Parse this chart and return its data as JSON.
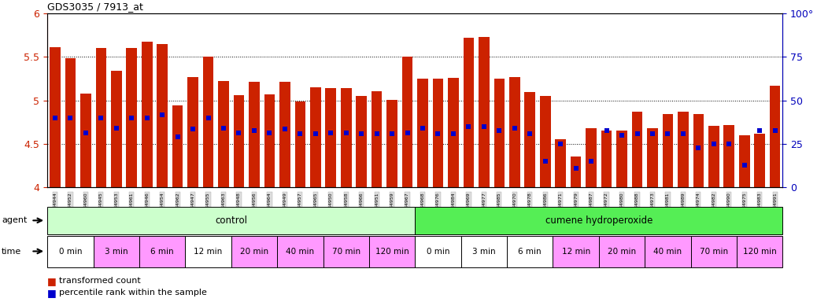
{
  "title": "GDS3035 / 7913_at",
  "samples": [
    "GSM184944",
    "GSM184952",
    "GSM184960",
    "GSM184945",
    "GSM184953",
    "GSM184961",
    "GSM184946",
    "GSM184954",
    "GSM184962",
    "GSM184947",
    "GSM184955",
    "GSM184963",
    "GSM184948",
    "GSM184956",
    "GSM184964",
    "GSM184949",
    "GSM184957",
    "GSM184965",
    "GSM184950",
    "GSM184958",
    "GSM184966",
    "GSM184951",
    "GSM184959",
    "GSM184967",
    "GSM184968",
    "GSM184976",
    "GSM184984",
    "GSM184969",
    "GSM184977",
    "GSM184985",
    "GSM184970",
    "GSM184978",
    "GSM184986",
    "GSM184971",
    "GSM184979",
    "GSM184987",
    "GSM184972",
    "GSM184980",
    "GSM184988",
    "GSM184973",
    "GSM184981",
    "GSM184989",
    "GSM184974",
    "GSM184982",
    "GSM184990",
    "GSM184975",
    "GSM184983",
    "GSM184991"
  ],
  "red_values": [
    5.61,
    5.49,
    5.08,
    5.6,
    5.34,
    5.6,
    5.68,
    5.65,
    4.94,
    5.27,
    5.5,
    5.22,
    5.06,
    5.21,
    5.07,
    5.21,
    4.99,
    5.15,
    5.14,
    5.14,
    5.05,
    5.11,
    5.01,
    5.5,
    5.25,
    5.25,
    5.26,
    5.72,
    5.73,
    5.25,
    5.27,
    5.1,
    5.05,
    4.55,
    4.35,
    4.68,
    4.65,
    4.65,
    4.87,
    4.68,
    4.84,
    4.87,
    4.84,
    4.71,
    4.72,
    4.6,
    4.62,
    5.17
  ],
  "blue_values": [
    4.8,
    4.8,
    4.63,
    4.8,
    4.68,
    4.8,
    4.8,
    4.83,
    4.58,
    4.67,
    4.8,
    4.68,
    4.63,
    4.65,
    4.63,
    4.67,
    4.62,
    4.62,
    4.63,
    4.63,
    4.62,
    4.62,
    4.62,
    4.63,
    4.68,
    4.62,
    4.62,
    4.7,
    4.7,
    4.65,
    4.68,
    4.62,
    4.3,
    4.5,
    4.22,
    4.3,
    4.65,
    4.6,
    4.62,
    4.62,
    4.62,
    4.62,
    4.45,
    4.5,
    4.5,
    4.25,
    4.65,
    4.65
  ],
  "ylim_left": [
    4.0,
    6.0
  ],
  "ylim_right": [
    0,
    100
  ],
  "yticks_left": [
    4.0,
    4.5,
    5.0,
    5.5,
    6.0
  ],
  "yticks_right": [
    0,
    25,
    50,
    75,
    100
  ],
  "bar_color": "#CC2200",
  "dot_color": "#0000CC",
  "bg_color": "#FFFFFF",
  "axis_left_color": "#CC2200",
  "axis_right_color": "#0000BB",
  "agent_row": [
    {
      "label": "control",
      "start": 0,
      "end": 24,
      "color": "#CCFFCC"
    },
    {
      "label": "cumene hydroperoxide",
      "start": 24,
      "end": 48,
      "color": "#55EE55"
    }
  ],
  "time_groups": [
    {
      "label": "0 min",
      "start": 0,
      "end": 3,
      "color": "#FFFFFF"
    },
    {
      "label": "3 min",
      "start": 3,
      "end": 6,
      "color": "#FF99FF"
    },
    {
      "label": "6 min",
      "start": 6,
      "end": 9,
      "color": "#FF99FF"
    },
    {
      "label": "12 min",
      "start": 9,
      "end": 12,
      "color": "#FFFFFF"
    },
    {
      "label": "20 min",
      "start": 12,
      "end": 15,
      "color": "#FF99FF"
    },
    {
      "label": "40 min",
      "start": 15,
      "end": 18,
      "color": "#FF99FF"
    },
    {
      "label": "70 min",
      "start": 18,
      "end": 21,
      "color": "#FF99FF"
    },
    {
      "label": "120 min",
      "start": 21,
      "end": 24,
      "color": "#FF99FF"
    },
    {
      "label": "0 min",
      "start": 24,
      "end": 27,
      "color": "#FFFFFF"
    },
    {
      "label": "3 min",
      "start": 27,
      "end": 30,
      "color": "#FFFFFF"
    },
    {
      "label": "6 min",
      "start": 30,
      "end": 33,
      "color": "#FFFFFF"
    },
    {
      "label": "12 min",
      "start": 33,
      "end": 36,
      "color": "#FF99FF"
    },
    {
      "label": "20 min",
      "start": 36,
      "end": 39,
      "color": "#FF99FF"
    },
    {
      "label": "40 min",
      "start": 39,
      "end": 42,
      "color": "#FF99FF"
    },
    {
      "label": "70 min",
      "start": 42,
      "end": 45,
      "color": "#FF99FF"
    },
    {
      "label": "120 min",
      "start": 45,
      "end": 48,
      "color": "#FF99FF"
    }
  ],
  "grid_lines": [
    4.5,
    5.0,
    5.5
  ],
  "bar_width": 0.7,
  "dot_size": 4
}
